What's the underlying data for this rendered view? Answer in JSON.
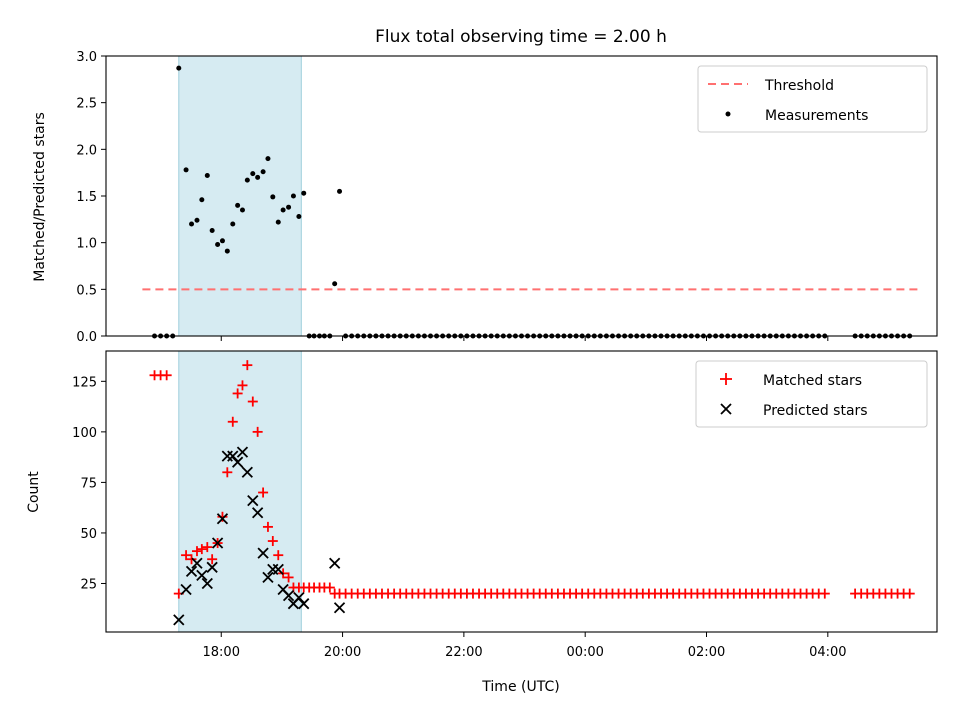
{
  "chart_data": [
    {
      "type": "scatter",
      "title": "Flux total observing time = 2.00 h",
      "xlabel": "",
      "ylabel": "Matched/Predicted stars",
      "ylim": [
        0,
        3.0
      ],
      "xlim_hours": [
        16.1,
        29.8
      ],
      "yticks": [
        "0.0",
        "0.5",
        "1.0",
        "1.5",
        "2.0",
        "2.5",
        "3.0"
      ],
      "ytick_values": [
        0,
        0.5,
        1.0,
        1.5,
        2.0,
        2.5,
        3.0
      ],
      "shaded_span_hours": [
        17.3,
        19.32
      ],
      "shade_color": "#add8e6",
      "legend": {
        "position": "top-right",
        "entries": [
          "Threshold",
          "Measurements"
        ]
      },
      "threshold": {
        "name": "Threshold",
        "value": 0.5,
        "x_range_hours": [
          16.7,
          29.5
        ],
        "color": "#ff7070"
      },
      "measurements": {
        "name": "Measurements",
        "color": "#000000",
        "x_hours": [
          16.9,
          17.0,
          17.1,
          17.2,
          17.3,
          17.42,
          17.51,
          17.6,
          17.68,
          17.77,
          17.85,
          17.94,
          18.02,
          18.1,
          18.19,
          18.27,
          18.35,
          18.43,
          18.52,
          18.6,
          18.69,
          18.77,
          18.85,
          18.94,
          19.02,
          19.11,
          19.19,
          19.28,
          19.36,
          19.45,
          19.53,
          19.62,
          19.7,
          19.79,
          19.87,
          19.95
        ],
        "y": [
          0,
          0,
          0,
          0,
          2.87,
          1.78,
          1.2,
          1.24,
          1.46,
          1.72,
          1.13,
          0.98,
          1.02,
          0.91,
          1.2,
          1.4,
          1.35,
          1.67,
          1.74,
          1.7,
          1.76,
          1.9,
          1.49,
          1.22,
          1.35,
          1.38,
          1.5,
          1.28,
          1.53,
          0,
          0,
          0,
          0,
          0,
          0.56,
          1.55
        ],
        "zero_series_start_hours": 20.05,
        "zero_series_end_hours": 29.4,
        "zero_series_step_hours": 0.1,
        "zero_series_gaps_hours": [
          [
            28.05,
            28.35
          ]
        ]
      }
    },
    {
      "type": "scatter",
      "xlabel": "Time (UTC)",
      "ylabel": "Count",
      "ylim": [
        1,
        140
      ],
      "xlim_hours": [
        16.1,
        29.8
      ],
      "yticks": [
        "25",
        "50",
        "75",
        "100",
        "125"
      ],
      "ytick_values": [
        25,
        50,
        75,
        100,
        125
      ],
      "xticks": [
        "18:00",
        "20:00",
        "22:00",
        "00:00",
        "02:00",
        "04:00"
      ],
      "xtick_hours": [
        18,
        20,
        22,
        24,
        26,
        28
      ],
      "shaded_span_hours": [
        17.3,
        19.32
      ],
      "shade_color": "#add8e6",
      "legend": {
        "position": "top-right",
        "entries": [
          "Matched stars",
          "Predicted stars"
        ]
      },
      "matched": {
        "name": "Matched stars",
        "color": "#ff0000",
        "x_hours": [
          16.9,
          17.0,
          17.1,
          17.3,
          17.42,
          17.51,
          17.6,
          17.68,
          17.77,
          17.85,
          17.94,
          18.02,
          18.1,
          18.19,
          18.27,
          18.35,
          18.43,
          18.52,
          18.6,
          18.69,
          18.77,
          18.85,
          18.94,
          19.02,
          19.11,
          19.19,
          19.28,
          19.36,
          19.45,
          19.53,
          19.62,
          19.7,
          19.79,
          19.87,
          19.95
        ],
        "y": [
          128,
          128,
          128,
          20,
          39,
          37,
          41,
          42,
          43,
          37,
          45,
          58,
          80,
          105,
          119,
          123,
          133,
          115,
          100,
          70,
          53,
          46,
          39,
          30,
          28,
          23,
          23,
          23,
          23,
          23,
          23,
          23,
          23,
          20,
          20
        ],
        "tail_start_hours": 20.05,
        "tail_end_hours": 29.4,
        "tail_step_hours": 0.1,
        "tail_value": 20,
        "tail_gaps_hours": [
          [
            28.05,
            28.35
          ]
        ]
      },
      "predicted": {
        "name": "Predicted stars",
        "color": "#000000",
        "x_hours": [
          17.3,
          17.42,
          17.51,
          17.6,
          17.68,
          17.77,
          17.85,
          17.94,
          18.02,
          18.1,
          18.19,
          18.27,
          18.35,
          18.43,
          18.52,
          18.6,
          18.69,
          18.77,
          18.85,
          18.94,
          19.02,
          19.11,
          19.19,
          19.28,
          19.36,
          19.87,
          19.95
        ],
        "y": [
          7,
          22,
          31,
          35,
          29,
          25,
          33,
          45,
          57,
          88,
          88,
          85,
          90,
          80,
          66,
          60,
          40,
          28,
          32,
          32,
          22,
          19,
          15,
          18,
          15,
          35,
          13
        ]
      }
    }
  ]
}
